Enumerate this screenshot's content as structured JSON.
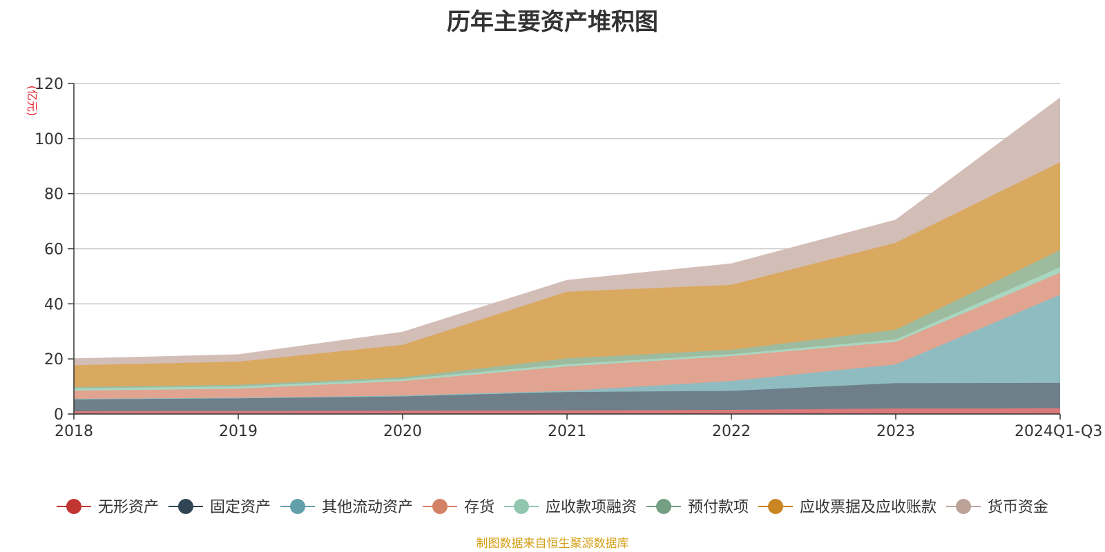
{
  "chart_data": {
    "type": "area",
    "stacked": true,
    "title": "历年主要资产堆积图",
    "unit_label": "(亿元)",
    "categories": [
      "2018",
      "2019",
      "2020",
      "2021",
      "2022",
      "2023",
      "2024Q1-Q3"
    ],
    "ylim": [
      0,
      120
    ],
    "yticks": [
      0,
      20,
      40,
      60,
      80,
      100,
      120
    ],
    "grid": true,
    "legend_position": "bottom",
    "series": [
      {
        "name": "无形资产",
        "color": "#c23531",
        "fill": "#d9797a",
        "values": [
          1.0,
          1.1,
          1.2,
          1.3,
          1.5,
          2.0,
          2.1
        ]
      },
      {
        "name": "固定资产",
        "color": "#2f4554",
        "fill": "#6e7f8a",
        "values": [
          4.3,
          4.6,
          5.2,
          6.7,
          6.9,
          9.2,
          9.2
        ]
      },
      {
        "name": "其他流动资产",
        "color": "#61a0a8",
        "fill": "#8fbcc1",
        "values": [
          0.2,
          0.2,
          0.3,
          0.4,
          3.6,
          6.8,
          32.0
        ]
      },
      {
        "name": "存货",
        "color": "#d48265",
        "fill": "#e0a491",
        "values": [
          3.0,
          3.3,
          5.3,
          8.9,
          9.0,
          8.2,
          8.0
        ]
      },
      {
        "name": "应收款项融资",
        "color": "#91c7ae",
        "fill": "#a9d6c0",
        "values": [
          0.8,
          0.8,
          0.7,
          0.8,
          0.7,
          0.9,
          2.0
        ]
      },
      {
        "name": "预付款项",
        "color": "#749f83",
        "fill": "#9cbb9f",
        "values": [
          0.5,
          0.6,
          0.6,
          2.1,
          1.6,
          3.5,
          6.2
        ]
      },
      {
        "name": "应收票据及应收账款",
        "color": "#ca8622",
        "fill": "#d9a960",
        "values": [
          7.9,
          8.4,
          11.8,
          24.2,
          23.6,
          31.6,
          31.9
        ]
      },
      {
        "name": "货币资金",
        "color": "#bda29a",
        "fill": "#d3bdb7",
        "values": [
          2.3,
          2.5,
          4.6,
          4.1,
          7.6,
          8.2,
          23.3
        ]
      }
    ]
  },
  "source_note": "制图数据来自恒生聚源数据库"
}
